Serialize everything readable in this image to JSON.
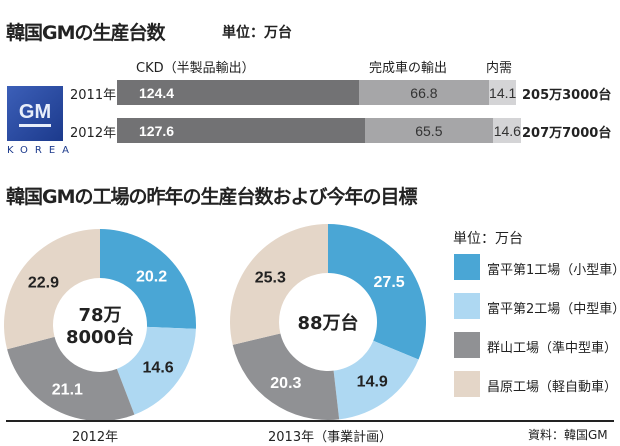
{
  "title1": "韓国GMの生産台数",
  "unit1": "単位：万台",
  "logo": {
    "text": "GM",
    "sub": "KOREA"
  },
  "title2": "韓国GMの工場の昨年の生産台数および今年の目標",
  "unit2": "単位：万台",
  "source": "資料：韓国GM",
  "colors": {
    "ckd": "#727274",
    "export": "#a6a6a8",
    "domestic": "#d4d4d6",
    "plant1": "#4aa6d5",
    "plant2": "#aed8f2",
    "gunsan": "#909194",
    "changwon": "#e4d6c8"
  },
  "chart_data": [
    {
      "type": "bar",
      "stacked": true,
      "orientation": "horizontal",
      "title": "韓国GMの生産台数",
      "unit": "万台",
      "series_labels": [
        "CKD（半製品輸出）",
        "完成車の輸出",
        "内需"
      ],
      "categories": [
        "2011年",
        "2012年"
      ],
      "values": [
        [
          124.4,
          66.8,
          14.1
        ],
        [
          127.6,
          65.5,
          14.6
        ]
      ],
      "value_labels": [
        [
          "124.4",
          "66.8",
          "14.1"
        ],
        [
          "127.6",
          "65.5",
          "14.6"
        ]
      ],
      "totals": [
        "205万3000台",
        "207万7000台"
      ]
    },
    {
      "type": "pie",
      "donut": true,
      "title": "2012年",
      "center_label": [
        "78万",
        "8000台"
      ],
      "labels": [
        "富平第1工場（小型車）",
        "富平第2工場（中型車）",
        "群山工場（準中型車）",
        "昌原工場（軽自動車）"
      ],
      "values": [
        20.2,
        14.6,
        21.1,
        22.9
      ],
      "value_labels": [
        "20.2",
        "14.6",
        "21.1",
        "22.9"
      ]
    },
    {
      "type": "pie",
      "donut": true,
      "title": "2013年（事業計画）",
      "center_label": [
        "88万台"
      ],
      "labels": [
        "富平第1工場（小型車）",
        "富平第2工場（中型車）",
        "群山工場（準中型車）",
        "昌原工場（軽自動車）"
      ],
      "values": [
        27.5,
        14.9,
        20.3,
        25.3
      ],
      "value_labels": [
        "27.5",
        "14.9",
        "20.3",
        "25.3"
      ]
    }
  ]
}
